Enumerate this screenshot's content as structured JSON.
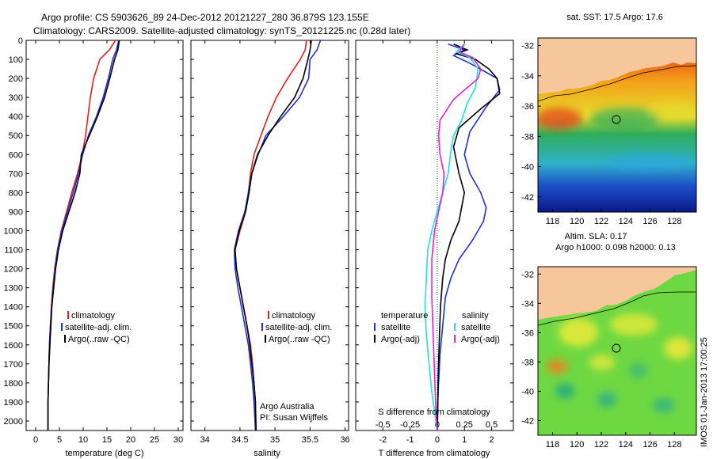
{
  "title": {
    "line1": "Argo profile: CS 5903626_89 24-Dec-2012 20121227_280 36.879S 123.155E",
    "line2": "Climatology: CARS2009. Satellite-adjusted climatology: synTS_20121225.nc (0.28d later)"
  },
  "side_text": {
    "map1_title": "sat. SST: 17.5 Argo: 17.6",
    "map2_title1": "Altim. SLA: 0.17",
    "map2_title2": "Argo h1000: 0.098 h2000: 0.13",
    "credit": "IMOS 01-Jan-2013 17:00:25"
  },
  "colors": {
    "climatology": "#e02020",
    "satellite": "#2030d0",
    "argo": "#000000",
    "t_satellite": "#2030d0",
    "s_satellite": "#20e0e0",
    "s_argo": "#e020e0",
    "land": "#f6c79a"
  },
  "chart_data": [
    {
      "type": "line",
      "panel": "temperature",
      "xlabel": "temperature (deg C)",
      "xticks": [
        0,
        5,
        10,
        15,
        20,
        25,
        30
      ],
      "xlim": [
        -2,
        31
      ],
      "ylim": [
        2050,
        0
      ],
      "yticks": [
        0,
        100,
        200,
        300,
        400,
        500,
        600,
        700,
        800,
        900,
        1000,
        1100,
        1200,
        1300,
        1400,
        1500,
        1600,
        1700,
        1800,
        1900,
        2000
      ],
      "legend": [
        "climatology",
        "satellite-adj. clim.",
        "Argo(..raw -QC)"
      ],
      "series": [
        {
          "name": "climatology",
          "color_key": "climatology",
          "x": [
            16.8,
            15.5,
            13.5,
            12.2,
            11.5,
            11,
            10.5,
            9.8,
            8.8,
            7.6,
            6.5,
            5.4,
            4.6,
            4,
            3.6,
            3.3,
            3.1,
            2.9,
            2.8,
            2.7,
            2.6,
            2.6
          ],
          "y": [
            0,
            50,
            100,
            200,
            300,
            400,
            500,
            600,
            700,
            800,
            900,
            1000,
            1100,
            1200,
            1300,
            1400,
            1500,
            1600,
            1700,
            1800,
            1900,
            2050
          ]
        },
        {
          "name": "satellite-adj. clim.",
          "color_key": "satellite",
          "x": [
            17.5,
            17,
            16.2,
            15.3,
            14.2,
            12.8,
            11.1,
            9.9,
            9,
            7.9,
            6.7,
            5.5,
            4.6,
            4.1,
            3.7,
            3.4,
            3.1,
            2.9,
            2.8,
            2.7,
            2.6,
            2.6
          ],
          "y": [
            0,
            50,
            100,
            200,
            300,
            400,
            500,
            600,
            700,
            800,
            900,
            1000,
            1100,
            1200,
            1300,
            1400,
            1500,
            1600,
            1700,
            1800,
            1900,
            2050
          ]
        },
        {
          "name": "Argo(..raw -QC)",
          "color_key": "argo",
          "x": [
            17.6,
            17.3,
            16.6,
            15.6,
            14.5,
            13,
            11.3,
            9.6,
            9.3,
            8.3,
            7,
            5.7,
            4.8,
            4.2,
            3.8,
            3.4,
            3.2,
            3,
            2.8,
            2.7,
            2.6,
            2.6
          ],
          "y": [
            0,
            50,
            100,
            200,
            300,
            400,
            500,
            600,
            700,
            800,
            900,
            1000,
            1100,
            1200,
            1300,
            1400,
            1500,
            1600,
            1700,
            1800,
            1900,
            2050
          ]
        }
      ]
    },
    {
      "type": "line",
      "panel": "salinity",
      "xlabel": "salinity",
      "xticks": [
        34,
        34.5,
        35,
        35.5,
        36
      ],
      "xlim": [
        33.8,
        36.05
      ],
      "ylim": [
        2050,
        0
      ],
      "legend": [
        "climatology",
        "satellite-adj. clim.",
        "Argo(..raw -QC)"
      ],
      "annotations": [
        "Argo Australia",
        "PI: Susan Wijffels"
      ],
      "series": [
        {
          "name": "climatology",
          "color_key": "climatology",
          "x": [
            35.45,
            35.43,
            35.36,
            35.18,
            35.02,
            34.9,
            34.8,
            34.7,
            34.65,
            34.62,
            34.58,
            34.5,
            34.43,
            34.45,
            34.5,
            34.55,
            34.6,
            34.65,
            34.68,
            34.7,
            34.72,
            34.72
          ],
          "y": [
            0,
            50,
            100,
            200,
            300,
            400,
            500,
            600,
            700,
            800,
            900,
            1000,
            1100,
            1200,
            1300,
            1400,
            1500,
            1600,
            1700,
            1800,
            1900,
            2050
          ]
        },
        {
          "name": "satellite-adj. clim.",
          "color_key": "satellite",
          "x": [
            35.65,
            35.6,
            35.5,
            35.48,
            35.35,
            35.12,
            34.87,
            34.76,
            34.67,
            34.62,
            34.57,
            34.48,
            34.42,
            34.43,
            34.47,
            34.52,
            34.57,
            34.62,
            34.65,
            34.68,
            34.7,
            34.72
          ],
          "y": [
            0,
            50,
            100,
            200,
            300,
            400,
            500,
            600,
            700,
            800,
            900,
            1000,
            1100,
            1200,
            1300,
            1400,
            1500,
            1600,
            1700,
            1800,
            1900,
            2050
          ]
        },
        {
          "name": "Argo(..raw -QC)",
          "color_key": "argo",
          "x": [
            35.52,
            35.5,
            35.47,
            35.4,
            35.28,
            35.08,
            34.9,
            34.75,
            34.67,
            34.63,
            34.58,
            34.49,
            34.43,
            34.45,
            34.5,
            34.55,
            34.6,
            34.64,
            34.67,
            34.7,
            34.72,
            34.73
          ],
          "y": [
            0,
            50,
            100,
            200,
            300,
            400,
            500,
            600,
            700,
            800,
            900,
            1000,
            1100,
            1200,
            1300,
            1400,
            1500,
            1600,
            1700,
            1800,
            1900,
            2050
          ]
        }
      ]
    },
    {
      "type": "line",
      "panel": "difference",
      "xlabel": "T difference from climatology",
      "xlabel_top": "S difference from climatology",
      "xticks": [
        -2,
        -1,
        0,
        1,
        2
      ],
      "xticks_top_labels": [
        "-0.5",
        "-0.25",
        "0",
        "0.25",
        "0.5"
      ],
      "xlim": [
        -3,
        2.8
      ],
      "ylim": [
        2050,
        0
      ],
      "legend_headers": [
        "temperature",
        "salinity"
      ],
      "legend": [
        "satellite",
        "Argo(-adj)",
        "satellite",
        "Argo(-adj)"
      ],
      "series": [
        {
          "name": "satellite",
          "group": "temperature",
          "color_key": "t_satellite",
          "x": [
            0.4,
            1,
            0.6,
            1.2,
            1.7,
            2.2,
            2.3,
            1.8,
            1.2,
            1,
            1.2,
            1.6,
            1.8,
            1.7,
            1.3,
            0.8,
            0.5,
            0.3,
            0.2,
            0.1,
            0.05,
            0,
            0
          ],
          "y": [
            20,
            50,
            80,
            120,
            160,
            200,
            260,
            350,
            480,
            600,
            700,
            800,
            880,
            950,
            1050,
            1150,
            1250,
            1350,
            1500,
            1650,
            1800,
            1950,
            2050
          ]
        },
        {
          "name": "Argo(-adj)",
          "group": "temperature",
          "color_key": "argo",
          "x": [
            0.6,
            1.1,
            0.7,
            1.4,
            1.9,
            2.2,
            2.3,
            1.6,
            0.8,
            0.6,
            0.8,
            1,
            0.8,
            0.5,
            0.3,
            0.2,
            0.12,
            0.08,
            0.05,
            0.03,
            0.02,
            0
          ],
          "y": [
            20,
            50,
            70,
            100,
            150,
            200,
            280,
            360,
            460,
            560,
            700,
            800,
            950,
            1050,
            1150,
            1250,
            1400,
            1550,
            1700,
            1800,
            1950,
            2050
          ]
        },
        {
          "name": "satellite",
          "group": "salinity",
          "color_key": "s_satellite",
          "x": [
            1,
            0.7,
            1.2,
            1.5,
            1.4,
            1.1,
            0.9,
            0.6,
            0.5,
            0.4,
            0.2,
            0,
            -0.2,
            -0.35,
            -0.4,
            -0.45,
            -0.4,
            -0.3,
            -0.2,
            -0.1,
            0
          ],
          "y": [
            20,
            60,
            90,
            150,
            250,
            330,
            420,
            500,
            580,
            700,
            800,
            900,
            1000,
            1100,
            1250,
            1400,
            1550,
            1700,
            1850,
            1950,
            2050
          ]
        },
        {
          "name": "Argo(-adj)",
          "group": "salinity",
          "color_key": "s_argo",
          "x": [
            1,
            0.8,
            1.3,
            1.6,
            1.5,
            0.6,
            0.1,
            0.05,
            0.1,
            0.25,
            0.2,
            0.05,
            -0.1,
            -0.2,
            -0.2,
            -0.15,
            -0.1,
            -0.05,
            0
          ],
          "y": [
            20,
            60,
            90,
            150,
            200,
            310,
            420,
            500,
            600,
            700,
            800,
            900,
            1000,
            1150,
            1350,
            1550,
            1750,
            1950,
            2050
          ]
        }
      ]
    },
    {
      "type": "heatmap",
      "panel": "sst-map",
      "title": "sat. SST: 17.5 Argo: 17.6",
      "xticks": [
        118,
        120,
        122,
        124,
        126,
        128
      ],
      "yticks": [
        -32,
        -34,
        -36,
        -38,
        -40,
        -42
      ],
      "xlim": [
        116.8,
        129.8
      ],
      "ylim": [
        -43,
        -31.5
      ],
      "argo_position": [
        123.15,
        -36.88
      ]
    },
    {
      "type": "heatmap",
      "panel": "sla-map",
      "xticks": [
        118,
        120,
        122,
        124,
        126,
        128
      ],
      "yticks": [
        -32,
        -34,
        -36,
        -38,
        -40,
        -42
      ],
      "xlim": [
        116.8,
        129.8
      ],
      "ylim": [
        -43,
        -31.5
      ],
      "argo_position": [
        123.15,
        -36.88
      ]
    }
  ]
}
